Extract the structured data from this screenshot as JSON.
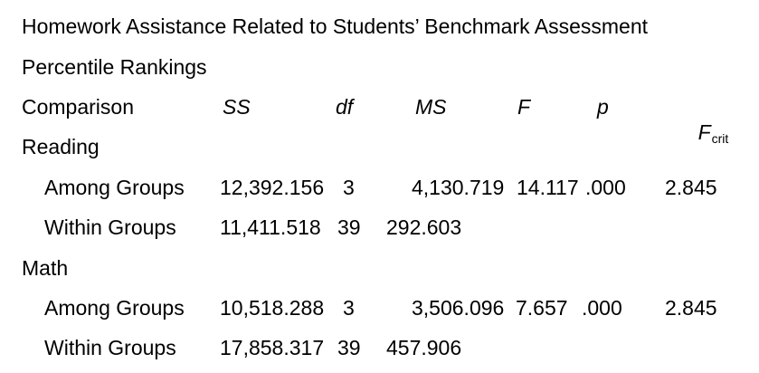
{
  "document": {
    "title_line1": "Homework Assistance Related to Students’ Benchmark Assessment",
    "title_line2": "Percentile Rankings",
    "columns": {
      "comparison": "Comparison",
      "ss": "SS",
      "df": "df",
      "ms": "MS",
      "f": "F",
      "p": "p",
      "fcrit_main": "F",
      "fcrit_sub": "crit"
    },
    "sections": [
      {
        "label": "Reading",
        "rows": [
          {
            "label": "Among Groups",
            "ss": "12,392.156",
            "df": "3",
            "ms": "4,130.719",
            "f": "14.117",
            "p": ".000",
            "fcrit": "2.845"
          },
          {
            "label": "Within Groups",
            "ss": "11,411.518",
            "df": "39",
            "ms": "292.603",
            "f": "",
            "p": "",
            "fcrit": ""
          }
        ]
      },
      {
        "label": "Math",
        "rows": [
          {
            "label": "Among Groups",
            "ss": "10,518.288",
            "df": "3",
            "ms": "3,506.096",
            "f": "7.657",
            "p": ".000",
            "fcrit": "2.845"
          },
          {
            "label": "Within Groups",
            "ss": "17,858.317",
            "df": "39",
            "ms": "457.906",
            "f": "",
            "p": "",
            "fcrit": ""
          }
        ]
      }
    ]
  }
}
